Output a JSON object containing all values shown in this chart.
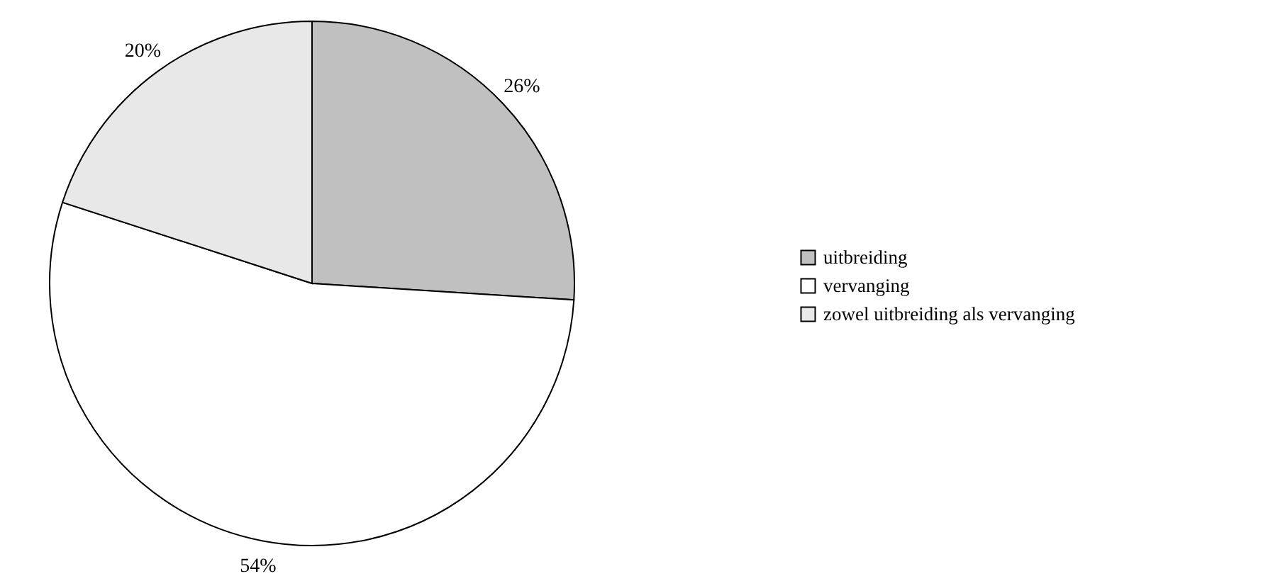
{
  "chart_data": {
    "type": "pie",
    "categories": [
      "uitbreiding",
      "vervanging",
      "zowel uitbreiding als vervanging"
    ],
    "values": [
      26,
      54,
      20
    ],
    "value_labels": [
      "26%",
      "54%",
      "20%"
    ],
    "colors": [
      "#c0c0c0",
      "#ffffff",
      "#e8e8e8"
    ],
    "legend": "right"
  }
}
